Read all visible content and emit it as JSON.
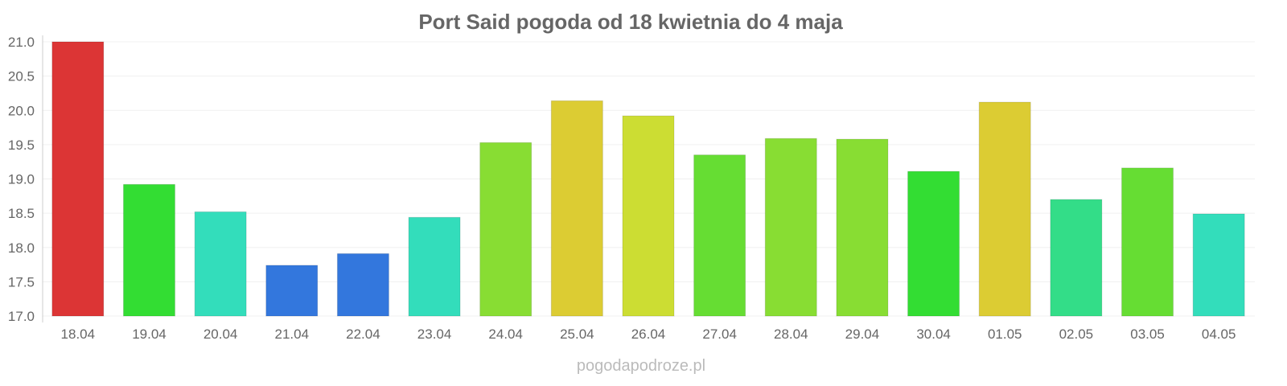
{
  "chart_data": {
    "type": "bar",
    "title": "Port Said pogoda od 18 kwietnia do 4 maja",
    "xlabel": "",
    "ylabel": "",
    "ylim": [
      17.0,
      21.0
    ],
    "yticks": [
      "17.0",
      "17.5",
      "18.0",
      "18.5",
      "19.0",
      "19.5",
      "20.0",
      "20.5",
      "21.0"
    ],
    "categories": [
      "18.04",
      "19.04",
      "20.04",
      "21.04",
      "22.04",
      "23.04",
      "24.04",
      "25.04",
      "26.04",
      "27.04",
      "28.04",
      "29.04",
      "30.04",
      "01.05",
      "02.05",
      "03.05",
      "04.05"
    ],
    "values": [
      21.0,
      18.92,
      18.52,
      17.74,
      17.91,
      18.44,
      19.53,
      20.14,
      19.92,
      19.35,
      19.59,
      19.58,
      19.11,
      20.12,
      18.7,
      19.16,
      18.49
    ],
    "colors": [
      "#dc3535",
      "#33dd33",
      "#33ddbb",
      "#3377dd",
      "#3377dd",
      "#33ddbb",
      "#88dd33",
      "#dccc33",
      "#ccdd33",
      "#66dd33",
      "#88dd33",
      "#88dd33",
      "#33dd33",
      "#dccc33",
      "#33dd88",
      "#66dd33",
      "#33ddbb"
    ],
    "grid": true,
    "legend": "none"
  },
  "watermark": "pogodapodroze.pl"
}
